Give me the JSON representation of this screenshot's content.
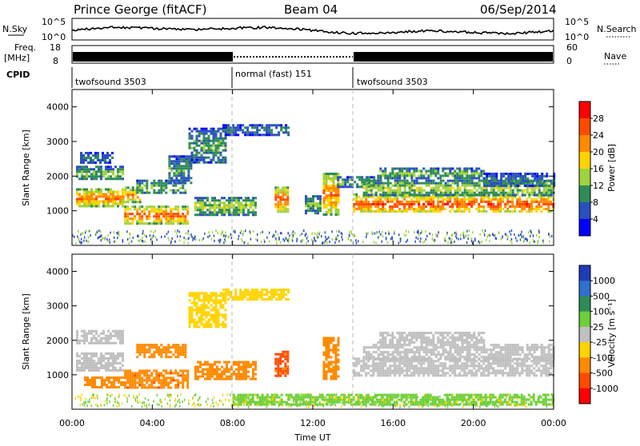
{
  "header": {
    "radar": "Prince George (fitACF)",
    "beam": "Beam 04",
    "date": "06/Sep/2014"
  },
  "top_panels": {
    "nsky_label": "N.Sky",
    "nsky_ticks": [
      "10^5",
      "10^0"
    ],
    "nsearch_label": "N.Search",
    "nsearch_ticks": [
      "10^5",
      "10^0"
    ],
    "freq_label_1": "Freq.",
    "freq_label_2": "[MHz]",
    "freq_ticks": [
      "18",
      "8"
    ],
    "nave_label": "Nave",
    "nave_ticks": [
      "60",
      "0"
    ],
    "cpid_label": "CPID",
    "cpid_segments": [
      {
        "label": "twofsound 3503",
        "start_hour": 0,
        "end_hour": 8
      },
      {
        "label": "normal (fast) 151",
        "start_hour": 8,
        "end_hour": 14
      },
      {
        "label": "twofsound 3503",
        "start_hour": 14,
        "end_hour": 24
      }
    ]
  },
  "power_colorbar": {
    "label": "Power [dB]",
    "ticks": [
      "28",
      "24",
      "20",
      "16",
      "12",
      "8",
      "4"
    ],
    "colors": [
      "#ff0000",
      "#ff4a00",
      "#ff8a00",
      "#ffd400",
      "#9fd23c",
      "#2e8b57",
      "#2a4fbf",
      "#0000ff"
    ]
  },
  "velocity_colorbar": {
    "label": "Velocity [m s⁻¹]",
    "ticks": [
      "1000",
      "500",
      "100",
      "25",
      "-25",
      "-100",
      "-500",
      "-1000"
    ],
    "colors": [
      "#1e3cb4",
      "#2e6fd0",
      "#2e8b57",
      "#6ecf3a",
      "#c0c0c0",
      "#ffd400",
      "#ff8a00",
      "#ff4a00",
      "#ff0000"
    ]
  },
  "chart_data": {
    "type": "heatmap",
    "xlabel": "Time UT",
    "ylabel": "Slant Range [km]",
    "x_ticks": [
      "00:00",
      "04:00",
      "08:00",
      "12:00",
      "16:00",
      "20:00",
      "00:00"
    ],
    "y_ticks": [
      "1000",
      "2000",
      "3000",
      "4000"
    ],
    "xlim_hours": [
      0,
      24
    ],
    "ylim_km": [
      0,
      4500
    ],
    "panels": [
      {
        "name": "power",
        "regions": [
          {
            "x": [
              0.2,
              2.5
            ],
            "y": [
              1150,
              1650
            ],
            "level": 22
          },
          {
            "x": [
              2.5,
              3.4
            ],
            "y": [
              1250,
              1700
            ],
            "level": 20
          },
          {
            "x": [
              0.2,
              2.5
            ],
            "y": [
              1900,
              2300
            ],
            "level": 12
          },
          {
            "x": [
              0.4,
              2.0
            ],
            "y": [
              2400,
              2700
            ],
            "level": 8
          },
          {
            "x": [
              2.6,
              5.8
            ],
            "y": [
              650,
              1150
            ],
            "level": 24
          },
          {
            "x": [
              3.2,
              5.6
            ],
            "y": [
              1500,
              1900
            ],
            "level": 12
          },
          {
            "x": [
              4.8,
              5.9
            ],
            "y": [
              1800,
              2600
            ],
            "level": 10
          },
          {
            "x": [
              5.8,
              7.6
            ],
            "y": [
              2400,
              3400
            ],
            "level": 10
          },
          {
            "x": [
              7.5,
              10.8
            ],
            "y": [
              3200,
              3500
            ],
            "level": 8
          },
          {
            "x": [
              6.1,
              9.2
            ],
            "y": [
              900,
              1400
            ],
            "level": 14
          },
          {
            "x": [
              10.1,
              10.7
            ],
            "y": [
              1000,
              1700
            ],
            "level": 24
          },
          {
            "x": [
              11.6,
              12.4
            ],
            "y": [
              950,
              1450
            ],
            "level": 12
          },
          {
            "x": [
              12.5,
              13.3
            ],
            "y": [
              900,
              2100
            ],
            "level": 22
          },
          {
            "x": [
              13.2,
              15.0
            ],
            "y": [
              1700,
              2000
            ],
            "level": 12
          },
          {
            "x": [
              14.0,
              24.0
            ],
            "y": [
              950,
              1500
            ],
            "level": 24
          },
          {
            "x": [
              14.5,
              24.0
            ],
            "y": [
              1450,
              1900
            ],
            "level": 14
          },
          {
            "x": [
              15.2,
              20.5
            ],
            "y": [
              1950,
              2250
            ],
            "level": 12
          },
          {
            "x": [
              20.5,
              24.0
            ],
            "y": [
              1700,
              2100
            ],
            "level": 8
          }
        ]
      },
      {
        "name": "velocity",
        "regions": [
          {
            "x": [
              0.2,
              2.5
            ],
            "y": [
              1150,
              1650
            ],
            "level": 0
          },
          {
            "x": [
              0.2,
              2.5
            ],
            "y": [
              1900,
              2300
            ],
            "level": 0
          },
          {
            "x": [
              2.6,
              5.8
            ],
            "y": [
              650,
              1150
            ],
            "level": -400
          },
          {
            "x": [
              0.6,
              2.6
            ],
            "y": [
              650,
              950
            ],
            "level": -150
          },
          {
            "x": [
              3.2,
              5.6
            ],
            "y": [
              1500,
              1900
            ],
            "level": -150
          },
          {
            "x": [
              5.8,
              7.6
            ],
            "y": [
              2400,
              3400
            ],
            "level": -60
          },
          {
            "x": [
              7.5,
              10.8
            ],
            "y": [
              3200,
              3500
            ],
            "level": -60
          },
          {
            "x": [
              6.1,
              9.2
            ],
            "y": [
              900,
              1400
            ],
            "level": -300
          },
          {
            "x": [
              10.1,
              10.7
            ],
            "y": [
              1000,
              1700
            ],
            "level": -600
          },
          {
            "x": [
              12.5,
              13.3
            ],
            "y": [
              900,
              2100
            ],
            "level": -300
          },
          {
            "x": [
              14.0,
              24.0
            ],
            "y": [
              950,
              1500
            ],
            "level": 0
          },
          {
            "x": [
              14.5,
              24.0
            ],
            "y": [
              1450,
              1900
            ],
            "level": 0
          },
          {
            "x": [
              15.2,
              20.5
            ],
            "y": [
              1950,
              2250
            ],
            "level": 0
          },
          {
            "x": [
              8.0,
              24.0
            ],
            "y": [
              150,
              450
            ],
            "level": 70
          }
        ]
      }
    ]
  }
}
